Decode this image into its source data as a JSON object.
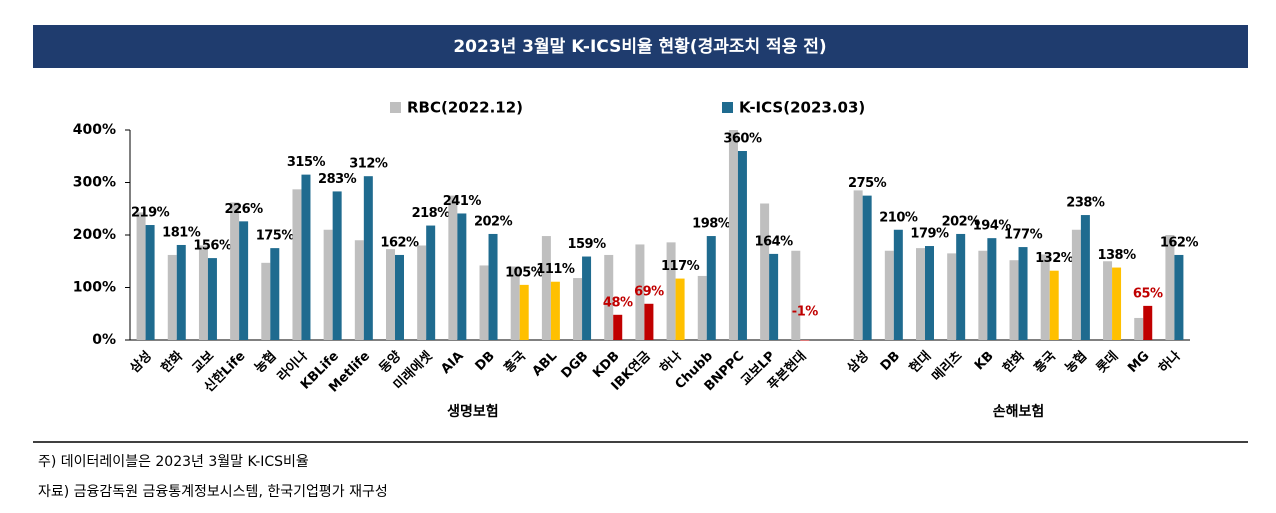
{
  "chart_data": {
    "type": "bar",
    "title": "2023년 3월말 K-ICS비율 현황(경과조치 적용 전)",
    "categories": [
      "삼성",
      "한화",
      "교보",
      "신한Life",
      "농협",
      "라이나",
      "KBLife",
      "Metlife",
      "동양",
      "미래에셋",
      "AIA",
      "DB",
      "흥국",
      "ABL",
      "DGB",
      "KDB",
      "IBK연금",
      "하나",
      "Chubb",
      "BNPPC",
      "교보LP",
      "푸본현대",
      null,
      "삼성",
      "DB",
      "현대",
      "메리츠",
      "KB",
      "한화",
      "흥국",
      "농협",
      "롯데",
      "MG",
      "하나"
    ],
    "group_labels": [
      "생명보험",
      "손해보험"
    ],
    "series": [
      {
        "name": "RBC(2022.12)",
        "color": "#bfbfbf",
        "values": [
          243,
          162,
          180,
          262,
          147,
          287,
          210,
          190,
          173,
          180,
          275,
          142,
          140,
          198,
          118,
          162,
          182,
          186,
          122,
          400,
          260,
          170,
          null,
          285,
          170,
          175,
          165,
          170,
          152,
          163,
          210,
          150,
          42,
          200
        ]
      },
      {
        "name": "K-ICS(2023.03)",
        "color": "#1f6b8f",
        "alert_color": "#c00000",
        "colors": [
          "#1f6b8f",
          "#1f6b8f",
          "#1f6b8f",
          "#1f6b8f",
          "#1f6b8f",
          "#1f6b8f",
          "#1f6b8f",
          "#1f6b8f",
          "#1f6b8f",
          "#1f6b8f",
          "#1f6b8f",
          "#1f6b8f",
          "#ffc000",
          "#ffc000",
          "#1f6b8f",
          "#c00000",
          "#c00000",
          "#ffc000",
          "#1f6b8f",
          "#1f6b8f",
          "#1f6b8f",
          "#c00000",
          null,
          "#1f6b8f",
          "#1f6b8f",
          "#1f6b8f",
          "#1f6b8f",
          "#1f6b8f",
          "#1f6b8f",
          "#ffc000",
          "#1f6b8f",
          "#ffc000",
          "#c00000",
          "#1f6b8f"
        ],
        "values": [
          219,
          181,
          156,
          226,
          175,
          315,
          283,
          312,
          162,
          218,
          241,
          202,
          105,
          111,
          159,
          48,
          69,
          117,
          198,
          360,
          164,
          -1,
          null,
          275,
          210,
          179,
          202,
          194,
          177,
          132,
          238,
          138,
          65,
          162
        ],
        "value_labels": [
          "219%",
          "181%",
          "156%",
          "226%",
          "175%",
          "315%",
          "283%",
          "312%",
          "162%",
          "218%",
          "241%",
          "202%",
          "105%",
          "111%",
          "159%",
          "48%",
          "69%",
          "117%",
          "198%",
          "360%",
          "164%",
          "-1%",
          null,
          "275%",
          "210%",
          "179%",
          "202%",
          "194%",
          "177%",
          "132%",
          "238%",
          "138%",
          "65%",
          "162%"
        ]
      }
    ],
    "ylim": [
      0,
      400
    ],
    "yticks": [
      {
        "value": 0,
        "label": "0%"
      },
      {
        "value": 100,
        "label": "100%"
      },
      {
        "value": 200,
        "label": "200%"
      },
      {
        "value": 300,
        "label": "300%"
      },
      {
        "value": 400,
        "label": "400%"
      }
    ],
    "grid": false
  },
  "notes": [
    "주) 데이터레이블은 2023년 3월말 K-ICS비율",
    "자료) 금융감독원 금융통계정보시스템, 한국기업평가 재구성"
  ]
}
